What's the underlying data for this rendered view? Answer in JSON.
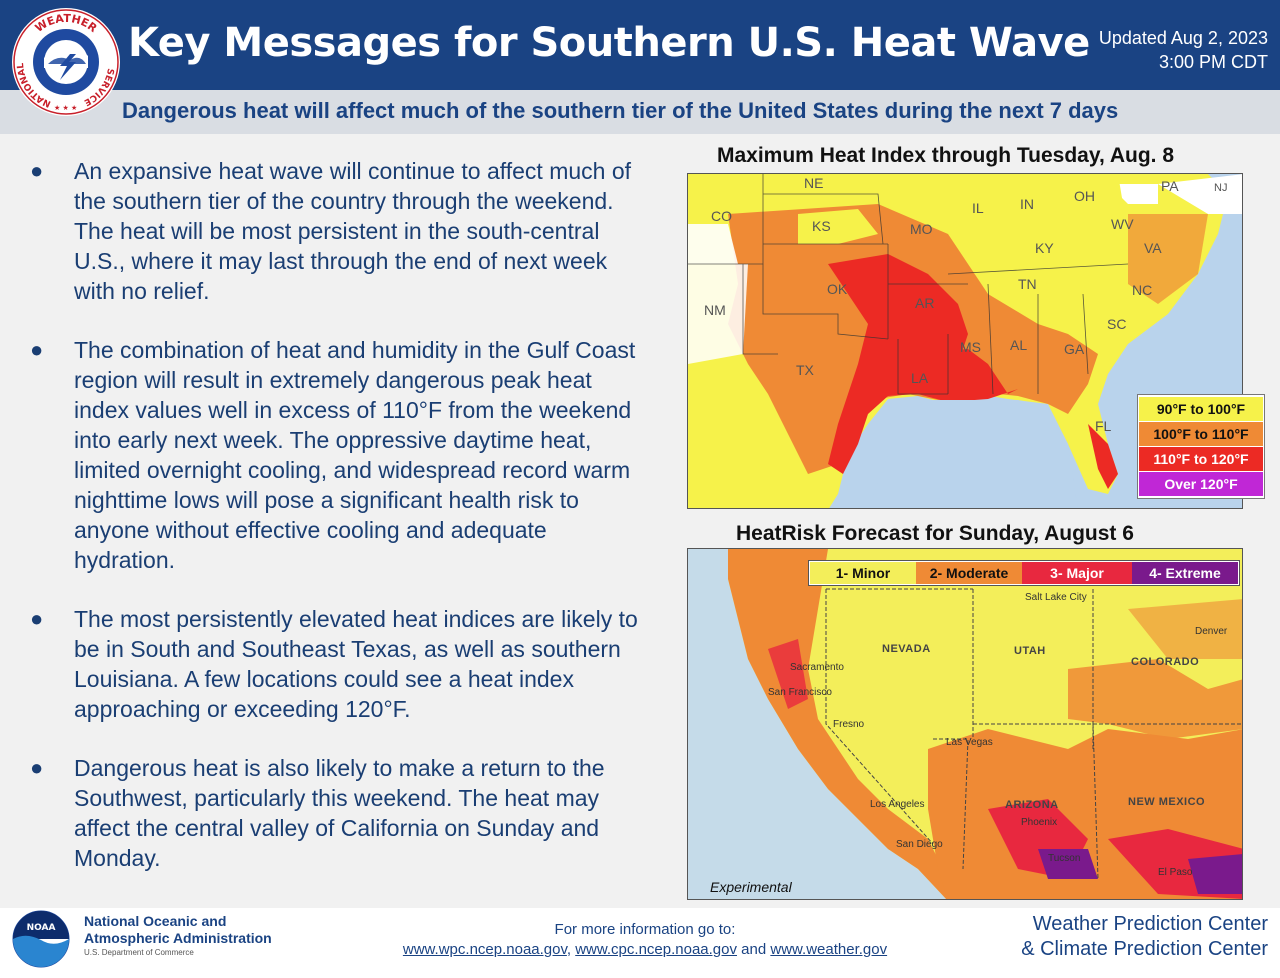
{
  "header": {
    "title": "Key Messages for Southern U.S. Heat Wave",
    "updated_line1": "Updated Aug 2, 2023",
    "updated_line2": "3:00 PM CDT",
    "subtitle": "Dangerous heat will affect much of the southern tier of the United States during the next 7 days"
  },
  "logo": {
    "text_top": "WEATHER",
    "text_left": "NATIONAL",
    "text_right": "SERVICE"
  },
  "bullets": [
    "An expansive heat wave will continue to affect much of the southern tier of the country through the weekend. The heat will be most persistent in the south-central U.S., where it may last through the end of next week with no relief.",
    "The combination of heat and humidity in the Gulf Coast region will result in extremely dangerous peak heat index values well in excess of 110°F from the weekend into early next week. The oppressive daytime heat, limited overnight cooling, and widespread record warm nighttime lows will pose a significant health risk to anyone without effective cooling and adequate hydration.",
    "The most persistently elevated heat indices are likely to be in South and Southeast Texas, as well as southern Louisiana. A few locations could see a heat index approaching or exceeding 120°F.",
    "Dangerous heat is also likely to make a return to the Southwest, particularly this weekend. The heat may affect the central valley of California on Sunday and Monday."
  ],
  "map1": {
    "title": "Maximum Heat Index through Tuesday, Aug. 8",
    "states": [
      "NE",
      "CO",
      "KS",
      "MO",
      "IL",
      "IN",
      "OH",
      "PA",
      "NJ",
      "WV",
      "VA",
      "KY",
      "NM",
      "OK",
      "AR",
      "TN",
      "NC",
      "SC",
      "TX",
      "MS",
      "AL",
      "GA",
      "LA",
      "FL"
    ],
    "legend": [
      {
        "label": "90°F to 100°F",
        "color": "#f6f24a",
        "text_color": "#111111"
      },
      {
        "label": "100°F to 110°F",
        "color": "#ef8a35",
        "text_color": "#111111"
      },
      {
        "label": "110°F to 120°F",
        "color": "#ec2a24",
        "text_color": "#ffffff"
      },
      {
        "label": "Over 120°F",
        "color": "#c027d6",
        "text_color": "#ffffff"
      }
    ]
  },
  "map2": {
    "title": "HeatRisk Forecast for Sunday, August 6",
    "legend": [
      {
        "label": "1- Minor",
        "color": "#f3ee5a",
        "text_color": "#111111"
      },
      {
        "label": "2- Moderate",
        "color": "#ef8a35",
        "text_color": "#111111"
      },
      {
        "label": "3- Major",
        "color": "#e8283f",
        "text_color": "#ffffff"
      },
      {
        "label": "4- Extreme",
        "color": "#7a1a8c",
        "text_color": "#ffffff"
      }
    ],
    "states": [
      "NEVADA",
      "UTAH",
      "COLORADO",
      "ARIZONA",
      "NEW MEXICO"
    ],
    "cities": [
      "Salt Lake City",
      "Denver",
      "Sacramento",
      "San Francisco",
      "Fresno",
      "Las Vegas",
      "Los Angeles",
      "Phoenix",
      "San Diego",
      "Tucson",
      "El Paso"
    ],
    "note": "Experimental"
  },
  "footer": {
    "noaa_line1": "National Oceanic and",
    "noaa_line2": "Atmospheric Administration",
    "noaa_dept": "U.S. Department of Commerce",
    "noaa_logo_text": "NOAA",
    "more_info": "For more information go to:",
    "link1": "www.wpc.ncep.noaa.gov",
    "link2": "www.cpc.ncep.noaa.gov",
    "and": "and",
    "link3": "www.weather.gov",
    "center1": "Weather Prediction Center",
    "center2": "& Climate Prediction Center"
  }
}
